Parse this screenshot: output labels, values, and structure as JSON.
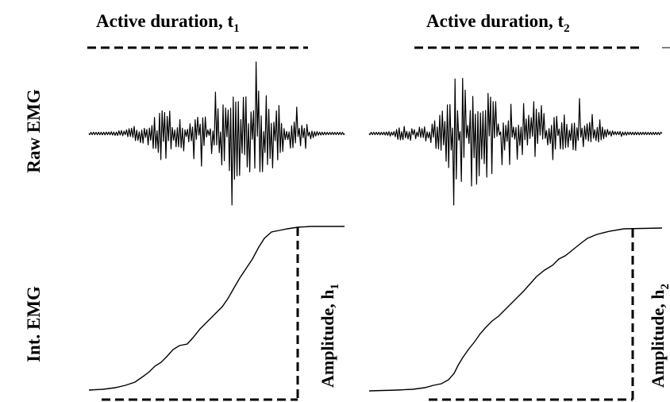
{
  "figure": {
    "left_panel": {
      "title_text": "Active duration, t",
      "title_subscript": "1",
      "amplitude_text": "Amplitude, h",
      "amplitude_subscript": "1"
    },
    "right_panel": {
      "title_text": "Active duration, t",
      "title_subscript": "2",
      "amplitude_text": "Amplitude, h",
      "amplitude_subscript": "2"
    },
    "row_labels": {
      "raw": "Raw EMG",
      "integrated": "Int. EMG"
    }
  }
}
